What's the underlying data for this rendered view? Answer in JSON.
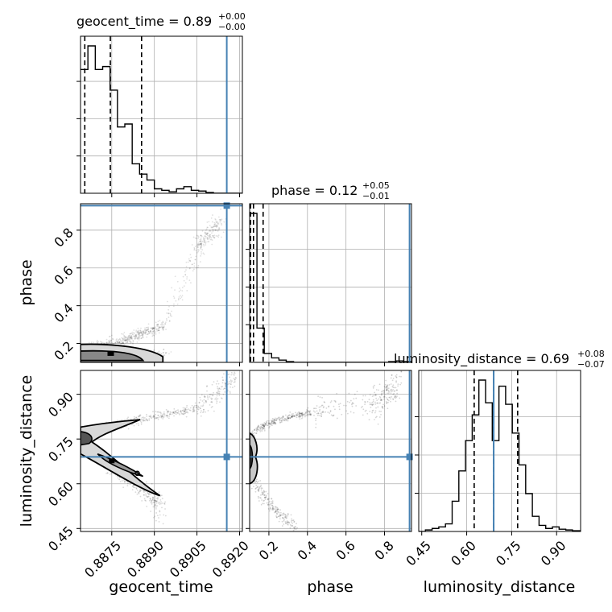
{
  "chart_data": {
    "type": "corner",
    "parameters": [
      "geocent_time",
      "phase",
      "luminosity_distance"
    ],
    "titles": [
      {
        "name": "geocent_time",
        "median": "0.89",
        "plus": "+0.00",
        "minus": "−0.00"
      },
      {
        "name": "phase",
        "median": "0.12",
        "plus": "+0.05",
        "minus": "−0.01"
      },
      {
        "name": "luminosity_distance",
        "median": "0.69",
        "plus": "+0.08",
        "minus": "−0.07"
      }
    ],
    "ranges": {
      "geocent_time": [
        0.8864,
        0.8921
      ],
      "phase": [
        0.1,
        0.94
      ],
      "luminosity_distance": [
        0.44,
        0.98
      ]
    },
    "ticks": {
      "geocent_time": {
        "values": [
          0.8875,
          0.889,
          0.8905,
          0.892
        ],
        "labels": [
          "0.8875",
          "0.8890",
          "0.8905",
          "0.8920"
        ]
      },
      "phase": {
        "values": [
          0.2,
          0.4,
          0.6,
          0.8
        ],
        "labels": [
          "0.2",
          "0.4",
          "0.6",
          "0.8"
        ]
      },
      "luminosity_distance": {
        "values": [
          0.45,
          0.6,
          0.75,
          0.9
        ],
        "labels": [
          "0.45",
          "0.60",
          "0.75",
          "0.90"
        ]
      }
    },
    "truths": {
      "geocent_time": 0.89155,
      "phase": 0.93,
      "luminosity_distance": 0.69
    },
    "quantiles": {
      "geocent_time": [
        0.88655,
        0.88745,
        0.88855
      ],
      "phase": [
        0.105,
        0.12,
        0.17
      ],
      "luminosity_distance": [
        0.625,
        0.69,
        0.77
      ]
    },
    "histograms": {
      "geocent_time": {
        "edges": [
          0.8864,
          0.88666,
          0.88692,
          0.88718,
          0.88744,
          0.8877,
          0.88796,
          0.88822,
          0.88848,
          0.88874,
          0.889,
          0.88926,
          0.88952,
          0.88978,
          0.89004,
          0.8903,
          0.89056,
          0.89082,
          0.89108,
          0.89134,
          0.8916,
          0.89186,
          0.8921
        ],
        "counts": [
          0.84,
          1.0,
          0.84,
          0.86,
          0.7,
          0.45,
          0.47,
          0.2,
          0.13,
          0.09,
          0.03,
          0.02,
          0.01,
          0.03,
          0.045,
          0.02,
          0.015,
          0.005,
          0.0,
          0.0,
          0.0,
          0.0
        ]
      },
      "phase": {
        "edges": [
          0.1,
          0.138,
          0.176,
          0.214,
          0.252,
          0.29,
          0.328,
          0.366,
          0.404,
          0.442,
          0.48,
          0.518,
          0.556,
          0.594,
          0.632,
          0.67,
          0.708,
          0.746,
          0.784,
          0.822,
          0.86,
          0.898,
          0.94
        ],
        "counts": [
          1.0,
          0.23,
          0.06,
          0.03,
          0.015,
          0.005,
          0.0,
          0.0,
          0.0,
          0.0,
          0.0,
          0.0,
          0.0,
          0.0,
          0.0,
          0.0,
          0.0,
          0.0,
          0.0,
          0.005,
          0.01,
          0.005
        ]
      },
      "luminosity_distance": {
        "edges": [
          0.44,
          0.4623,
          0.4846,
          0.5069,
          0.5292,
          0.5515,
          0.5738,
          0.5961,
          0.6184,
          0.6407,
          0.663,
          0.6853,
          0.7076,
          0.7299,
          0.7522,
          0.7745,
          0.7968,
          0.8191,
          0.8414,
          0.8637,
          0.886,
          0.9083,
          0.9306,
          0.9529,
          0.98
        ],
        "counts": [
          0.0,
          0.01,
          0.02,
          0.03,
          0.05,
          0.2,
          0.4,
          0.6,
          0.77,
          1.0,
          0.85,
          0.6,
          0.96,
          0.84,
          0.65,
          0.44,
          0.25,
          0.1,
          0.04,
          0.02,
          0.03,
          0.015,
          0.01,
          0.005
        ]
      }
    },
    "joint_2d": [
      {
        "x": "geocent_time",
        "y": "phase",
        "shape": "L-shaped curved ridge from (0.8865, 0.17) bending up toward (0.8912, 0.82)"
      },
      {
        "x": "geocent_time",
        "y": "luminosity_distance",
        "shape": "V-shaped split: upper branch from (0.8864, 0.76) rising to (0.8918, 0.94); lower branch descending to (0.8893, 0.54)"
      },
      {
        "x": "phase",
        "y": "luminosity_distance",
        "shape": "mass at phase 0.11 with arms up to (0.85, 0.90) and down to (0.32, 0.45)"
      }
    ],
    "xlabel": [
      "geocent_time",
      "phase",
      "luminosity_distance"
    ],
    "ylabel": [
      "",
      "phase",
      "luminosity_distance"
    ],
    "grid": true,
    "truth_color": "#4682b4"
  }
}
